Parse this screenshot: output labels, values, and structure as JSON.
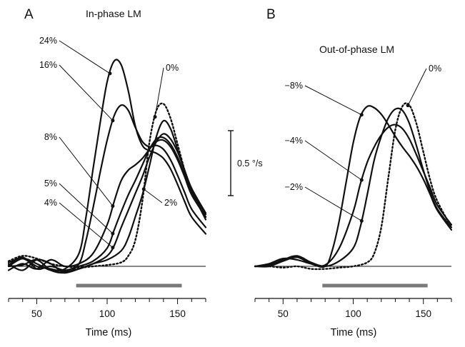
{
  "figure": {
    "scale_bar": {
      "value": 0.5,
      "label": "0.5 °/s"
    },
    "stimulus_bar": {
      "start_ms": 78,
      "end_ms": 153,
      "color": "#7a7a7a"
    }
  },
  "chart_data": [
    {
      "type": "line",
      "panel_letter": "A",
      "title": "In-phase LM",
      "xlabel": "Time (ms)",
      "ylabel": "",
      "xlim": [
        30,
        170
      ],
      "ylim": [
        -0.1,
        1.6
      ],
      "x_ticks": [
        50,
        100,
        150
      ],
      "x_tick_labels": [
        "50",
        "100",
        "150"
      ],
      "x_minor_tick_step": 10,
      "baseline": 0,
      "series": [
        {
          "name": "24%",
          "style": "solid",
          "label_anchor_x": 102,
          "x": [
            30,
            40,
            50,
            60,
            70,
            80,
            85,
            90,
            95,
            100,
            105,
            110,
            115,
            120,
            125,
            130,
            135,
            140,
            145,
            150,
            155,
            160,
            170
          ],
          "y": [
            0.0,
            0.06,
            0.02,
            -0.03,
            -0.02,
            0.1,
            0.38,
            0.75,
            1.1,
            1.42,
            1.58,
            1.55,
            1.35,
            1.08,
            0.93,
            0.89,
            0.87,
            0.83,
            0.75,
            0.63,
            0.5,
            0.38,
            0.25
          ]
        },
        {
          "name": "16%",
          "style": "solid",
          "label_anchor_x": 104,
          "x": [
            30,
            40,
            50,
            60,
            70,
            80,
            85,
            90,
            95,
            100,
            105,
            110,
            115,
            120,
            125,
            130,
            135,
            140,
            145,
            150,
            155,
            160,
            170
          ],
          "y": [
            0.02,
            -0.03,
            0.05,
            0.02,
            -0.05,
            0.02,
            0.2,
            0.45,
            0.72,
            0.97,
            1.16,
            1.24,
            1.2,
            1.07,
            0.96,
            0.92,
            0.93,
            0.9,
            0.82,
            0.7,
            0.57,
            0.44,
            0.3
          ]
        },
        {
          "name": "8%",
          "style": "solid",
          "label_anchor_x": 104,
          "x": [
            30,
            40,
            50,
            60,
            70,
            80,
            90,
            100,
            105,
            110,
            115,
            120,
            125,
            130,
            135,
            140,
            145,
            150,
            155,
            160,
            170
          ],
          "y": [
            -0.03,
            0.02,
            -0.02,
            0.05,
            0.0,
            0.02,
            0.1,
            0.32,
            0.5,
            0.66,
            0.74,
            0.78,
            0.83,
            0.9,
            0.96,
            0.97,
            0.92,
            0.82,
            0.69,
            0.55,
            0.38
          ]
        },
        {
          "name": "5%",
          "style": "solid",
          "label_anchor_x": 104,
          "x": [
            30,
            40,
            50,
            60,
            70,
            80,
            90,
            100,
            105,
            110,
            115,
            120,
            125,
            130,
            135,
            140,
            145,
            150,
            155,
            160,
            170
          ],
          "y": [
            0.01,
            0.07,
            -0.02,
            0.0,
            -0.03,
            0.0,
            0.04,
            0.14,
            0.28,
            0.42,
            0.55,
            0.66,
            0.78,
            0.9,
            0.98,
            0.99,
            0.94,
            0.84,
            0.71,
            0.58,
            0.4
          ]
        },
        {
          "name": "4%",
          "style": "solid",
          "label_anchor_x": 104,
          "x": [
            30,
            40,
            50,
            60,
            70,
            80,
            90,
            100,
            105,
            110,
            115,
            120,
            125,
            130,
            135,
            140,
            145,
            150,
            155,
            160,
            170
          ],
          "y": [
            0.03,
            0.06,
            0.0,
            -0.02,
            -0.04,
            -0.02,
            0.02,
            0.08,
            0.16,
            0.3,
            0.43,
            0.56,
            0.69,
            0.84,
            0.96,
            1.02,
            0.98,
            0.88,
            0.74,
            0.6,
            0.41
          ]
        },
        {
          "name": "2%",
          "style": "solid",
          "label_anchor_x": 126,
          "x": [
            30,
            40,
            50,
            60,
            70,
            80,
            90,
            100,
            110,
            115,
            120,
            125,
            130,
            135,
            140,
            145,
            150,
            155,
            160,
            170
          ],
          "y": [
            0.0,
            0.01,
            0.05,
            -0.03,
            -0.05,
            -0.02,
            0.02,
            0.05,
            0.12,
            0.22,
            0.38,
            0.55,
            0.77,
            1.0,
            1.12,
            1.06,
            0.9,
            0.74,
            0.58,
            0.36
          ]
        },
        {
          "name": "0%",
          "style": "dotted",
          "label_anchor_x": 134,
          "x": [
            30,
            40,
            50,
            60,
            70,
            80,
            90,
            100,
            110,
            115,
            120,
            125,
            130,
            135,
            140,
            145,
            150,
            155,
            160,
            170
          ],
          "y": [
            0.04,
            0.08,
            0.06,
            0.02,
            0.0,
            -0.01,
            0.0,
            0.01,
            0.03,
            0.08,
            0.2,
            0.5,
            0.95,
            1.2,
            1.25,
            1.14,
            0.94,
            0.74,
            0.56,
            0.38
          ]
        }
      ]
    },
    {
      "type": "line",
      "panel_letter": "B",
      "title": "Out-of-phase LM",
      "xlabel": "Time (ms)",
      "ylabel": "",
      "xlim": [
        30,
        170
      ],
      "ylim": [
        -0.1,
        1.6
      ],
      "x_ticks": [
        50,
        100,
        150
      ],
      "x_tick_labels": [
        "50",
        "100",
        "150"
      ],
      "x_minor_tick_step": 10,
      "baseline": 0,
      "series": [
        {
          "name": "-8%",
          "style": "solid",
          "label_anchor_x": 106,
          "x": [
            30,
            40,
            50,
            60,
            70,
            80,
            85,
            90,
            95,
            100,
            105,
            110,
            115,
            120,
            125,
            130,
            135,
            140,
            145,
            150,
            155,
            160,
            170
          ],
          "y": [
            0.0,
            0.0,
            0.04,
            0.07,
            0.02,
            0.0,
            0.12,
            0.35,
            0.65,
            0.95,
            1.15,
            1.23,
            1.22,
            1.17,
            1.09,
            1.0,
            0.92,
            0.85,
            0.77,
            0.67,
            0.55,
            0.43,
            0.28
          ]
        },
        {
          "name": "-4%",
          "style": "solid",
          "label_anchor_x": 106,
          "x": [
            30,
            40,
            50,
            60,
            70,
            80,
            90,
            100,
            105,
            110,
            115,
            120,
            125,
            130,
            135,
            140,
            145,
            150,
            155,
            160,
            170
          ],
          "y": [
            0.0,
            0.02,
            0.06,
            0.05,
            0.02,
            0.01,
            0.14,
            0.42,
            0.63,
            0.8,
            0.92,
            1.01,
            1.07,
            1.09,
            1.06,
            0.98,
            0.86,
            0.73,
            0.6,
            0.47,
            0.32
          ]
        },
        {
          "name": "-2%",
          "style": "solid",
          "label_anchor_x": 106,
          "x": [
            30,
            40,
            50,
            60,
            70,
            80,
            90,
            100,
            105,
            110,
            115,
            120,
            125,
            130,
            135,
            140,
            145,
            150,
            155,
            160,
            170
          ],
          "y": [
            0.0,
            0.01,
            0.05,
            0.08,
            0.03,
            0.0,
            0.04,
            0.14,
            0.3,
            0.55,
            0.82,
            1.0,
            1.14,
            1.21,
            1.2,
            1.1,
            0.93,
            0.74,
            0.57,
            0.44,
            0.3
          ]
        },
        {
          "name": "0%",
          "style": "dotted",
          "label_anchor_x": 139,
          "x": [
            30,
            40,
            50,
            60,
            70,
            80,
            90,
            100,
            110,
            115,
            120,
            125,
            130,
            135,
            140,
            145,
            150,
            155,
            160,
            170
          ],
          "y": [
            0.0,
            0.0,
            -0.01,
            0.0,
            -0.02,
            -0.02,
            -0.01,
            0.0,
            0.03,
            0.1,
            0.3,
            0.68,
            1.05,
            1.23,
            1.24,
            1.1,
            0.88,
            0.66,
            0.5,
            0.3
          ]
        }
      ]
    }
  ]
}
